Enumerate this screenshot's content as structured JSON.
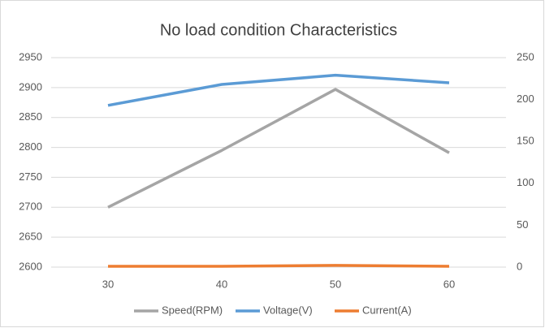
{
  "chart_data": {
    "type": "line",
    "title": "No load condition Characteristics",
    "categories": [
      30,
      40,
      50,
      60
    ],
    "series": [
      {
        "name": "Speed(RPM)",
        "color": "#a5a5a5",
        "values": [
          2700,
          2795,
          2897,
          2791
        ]
      },
      {
        "name": "Voltage(V)",
        "color": "#5b9bd5",
        "axis": "y2",
        "values": [
          193,
          218,
          229,
          220
        ]
      },
      {
        "name": "Current(A)",
        "color": "#ed7d31",
        "axis": "y2",
        "values": [
          1,
          1,
          2,
          1
        ]
      }
    ],
    "ylim": [
      2600,
      2950
    ],
    "yticks": [
      2600,
      2650,
      2700,
      2750,
      2800,
      2850,
      2900,
      2950
    ],
    "y2lim": [
      0,
      250
    ],
    "y2ticks": [
      0,
      50,
      100,
      150,
      200,
      250
    ],
    "grid": true,
    "legend": "bottom"
  }
}
